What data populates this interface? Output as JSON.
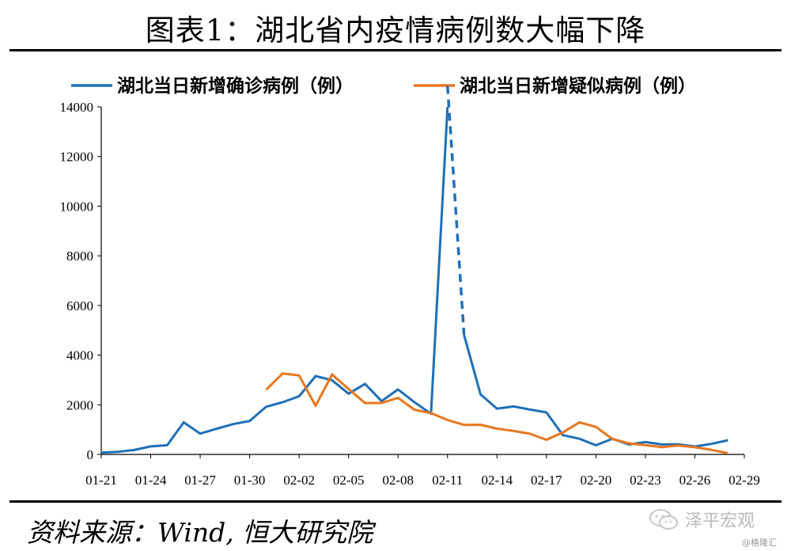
{
  "title": "图表1：湖北省内疫情病例数大幅下降",
  "source": "资料来源：Wind, 恒大研究院",
  "watermark": "泽平宏观",
  "credit": "@格隆汇",
  "chart_data": {
    "type": "line",
    "x": [
      "01-21",
      "01-22",
      "01-23",
      "01-24",
      "01-25",
      "01-26",
      "01-27",
      "01-28",
      "01-29",
      "01-30",
      "01-31",
      "02-01",
      "02-02",
      "02-03",
      "02-04",
      "02-05",
      "02-06",
      "02-07",
      "02-08",
      "02-09",
      "02-10",
      "02-11",
      "02-12",
      "02-13",
      "02-14",
      "02-15",
      "02-16",
      "02-17",
      "02-18",
      "02-19",
      "02-20",
      "02-21",
      "02-22",
      "02-23",
      "02-24",
      "02-25",
      "02-26",
      "02-27",
      "02-28",
      "02-29"
    ],
    "x_tick_labels": [
      "01-21",
      "01-24",
      "01-27",
      "01-30",
      "02-02",
      "02-05",
      "02-08",
      "02-11",
      "02-14",
      "02-17",
      "02-20",
      "02-23",
      "02-26",
      "02-29"
    ],
    "ylim": [
      0,
      14000
    ],
    "y_ticks": [
      0,
      2000,
      4000,
      6000,
      8000,
      10000,
      12000,
      14000
    ],
    "legend_position": "top",
    "grid": false,
    "series": [
      {
        "name": "湖北当日新增确诊病例（例）",
        "color": "#1F6FB8",
        "dashed_segment": [
          "02-11",
          "02-12"
        ],
        "values": [
          72,
          105,
          180,
          323,
          371,
          1291,
          840,
          1032,
          1220,
          1347,
          1921,
          2103,
          2345,
          3156,
          2987,
          2447,
          2841,
          2147,
          2618,
          2097,
          1638,
          14840,
          4823,
          2420,
          1843,
          1933,
          1807,
          1693,
          775,
          631,
          366,
          630,
          398,
          499,
          401,
          409,
          318,
          423,
          570,
          null
        ]
      },
      {
        "name": "湖北当日新增疑似病例（例）",
        "color": "#E8771E",
        "values": [
          null,
          null,
          null,
          null,
          null,
          null,
          null,
          null,
          null,
          null,
          2606,
          3260,
          3180,
          1957,
          3221,
          2634,
          2071,
          2073,
          2277,
          1800,
          1660,
          1387,
          1190,
          1196,
          1039,
          948,
          831,
          589,
          888,
          1290,
          1111,
          618,
          445,
          370,
          294,
          359,
          290,
          185,
          47,
          null
        ]
      }
    ]
  }
}
